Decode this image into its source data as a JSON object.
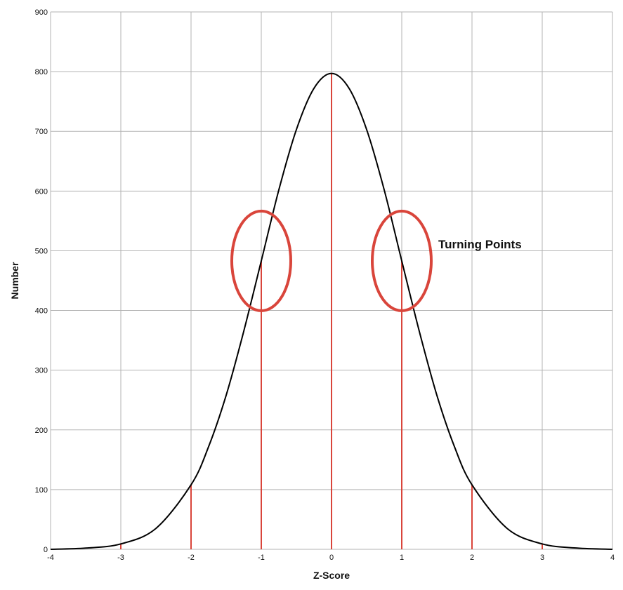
{
  "chart_data": {
    "type": "line",
    "title": "",
    "xlabel": "Z-Score",
    "ylabel": "Number",
    "xlim": [
      -4,
      4
    ],
    "ylim": [
      0,
      900
    ],
    "x_ticks": [
      -4,
      -3,
      -2,
      -1,
      0,
      1,
      2,
      3,
      4
    ],
    "x_tick_labels": [
      "-4",
      "-3",
      "-2",
      "-1",
      "0",
      "1",
      "2",
      "3",
      "4"
    ],
    "y_ticks": [
      0,
      100,
      200,
      300,
      400,
      500,
      600,
      700,
      800,
      900
    ],
    "y_tick_labels": [
      "0",
      "100",
      "200",
      "300",
      "400",
      "500",
      "600",
      "700",
      "800",
      "900"
    ],
    "grid": true,
    "series": [
      {
        "color": "#000000",
        "x": [
          -4,
          -3.5,
          -3,
          -2.5,
          -2,
          -1.75,
          -1.5,
          -1.25,
          -1,
          -0.75,
          -0.5,
          -0.25,
          0,
          0.25,
          0.5,
          0.75,
          1,
          1.25,
          1.5,
          1.75,
          2,
          2.5,
          3,
          3.5,
          4
        ],
        "y": [
          0,
          2,
          9,
          35,
          108,
          172,
          258,
          365,
          483,
          602,
          703,
          772,
          797,
          772,
          703,
          602,
          483,
          365,
          258,
          172,
          108,
          35,
          9,
          2,
          0
        ]
      }
    ],
    "reference_lines": {
      "color": "#d9453b",
      "lines": [
        {
          "x": -3,
          "y": 9
        },
        {
          "x": -2,
          "y": 108
        },
        {
          "x": -1,
          "y": 483
        },
        {
          "x": 0,
          "y": 797
        },
        {
          "x": 1,
          "y": 483
        },
        {
          "x": 2,
          "y": 108
        },
        {
          "x": 3,
          "y": 9
        }
      ]
    },
    "annotations": [
      {
        "label": "Turning Points",
        "points": [
          {
            "x": -1,
            "y": 483
          },
          {
            "x": 1,
            "y": 483
          }
        ],
        "color": "#d9453b"
      }
    ]
  }
}
